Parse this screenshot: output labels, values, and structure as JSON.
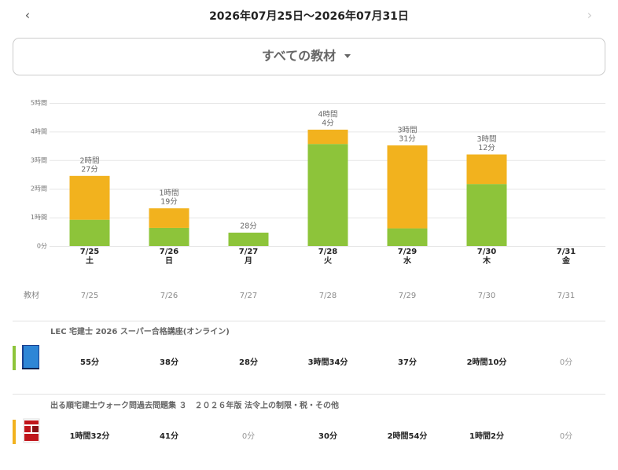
{
  "header": {
    "period": "2026年07月25日〜2026年07月31日",
    "filter": "すべての教材"
  },
  "chart_data": {
    "type": "stacked-bar",
    "categories": [
      "7/25",
      "7/26",
      "7/27",
      "7/28",
      "7/29",
      "7/30",
      "7/31"
    ],
    "weekdays": [
      "土",
      "日",
      "月",
      "火",
      "水",
      "木",
      "金"
    ],
    "ylim": [
      0,
      300
    ],
    "yticks": [
      {
        "value": 0,
        "label": "0分"
      },
      {
        "value": 60,
        "label": "1時間"
      },
      {
        "value": 120,
        "label": "2時間"
      },
      {
        "value": 180,
        "label": "3時間"
      },
      {
        "value": 240,
        "label": "4時間"
      },
      {
        "value": 300,
        "label": "5時間"
      }
    ],
    "grid": true,
    "total_labels": [
      [
        "2時間",
        "27分"
      ],
      [
        "1時間",
        "19分"
      ],
      [
        "28分"
      ],
      [
        "4時間",
        "4分"
      ],
      [
        "3時間",
        "31分"
      ],
      [
        "3時間",
        "12分"
      ],
      null
    ],
    "table_header": "教材",
    "series": [
      {
        "name": "LEC 宅建士 2026 スーパー合格講座(オンライン)",
        "color": "#8dc43a",
        "values": [
          55,
          38,
          28,
          214,
          37,
          130,
          0
        ],
        "value_labels": [
          "55分",
          "38分",
          "28分",
          "3時間34分",
          "37分",
          "2時間10分",
          "0分"
        ]
      },
      {
        "name": "出る順宅建士ウォーク問過去問題集 ３　２０２６年版 法令上の制限・税・その他",
        "color": "#f2b21e",
        "values": [
          92,
          41,
          0,
          30,
          174,
          62,
          0
        ],
        "value_labels": [
          "1時間32分",
          "41分",
          "0分",
          "30分",
          "2時間54分",
          "1時間2分",
          "0分"
        ]
      }
    ]
  }
}
